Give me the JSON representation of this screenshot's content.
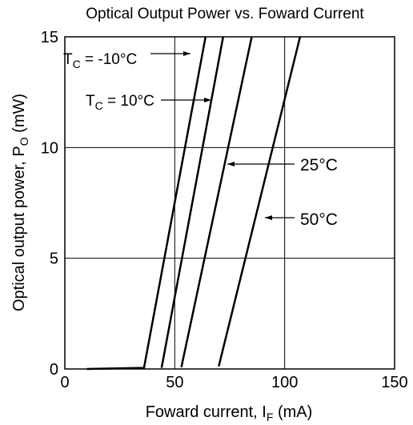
{
  "chart_data": {
    "type": "line",
    "title": "Optical Output Power vs. Foward Current",
    "xlabel": {
      "main": "Foward current,  I",
      "sub": "F",
      "unit": "  (mA)"
    },
    "ylabel": {
      "main": "Optical output power,  P",
      "sub": "O",
      "unit": "  (mW)"
    },
    "xlim": [
      0,
      150
    ],
    "ylim": [
      0,
      15
    ],
    "xticks": [
      "0",
      "50",
      "100",
      "150"
    ],
    "yticks": [
      "0",
      "5",
      "10",
      "15"
    ],
    "grid": true,
    "series": [
      {
        "name": "T_C = -10°C",
        "points": [
          [
            10,
            0
          ],
          [
            36,
            0.05
          ],
          [
            64,
            15
          ]
        ]
      },
      {
        "name": "T_C = 10°C",
        "points": [
          [
            44,
            0.05
          ],
          [
            72,
            15
          ]
        ]
      },
      {
        "name": "25°C",
        "points": [
          [
            53,
            0.08
          ],
          [
            85,
            15
          ]
        ]
      },
      {
        "name": "50°C",
        "points": [
          [
            70,
            0.12
          ],
          [
            107,
            15
          ]
        ]
      }
    ],
    "annotations": [
      {
        "prefix": "T",
        "sub": "C",
        "suffix": " = -10°C"
      },
      {
        "prefix": "T",
        "sub": "C",
        "suffix": " = 10°C"
      },
      {
        "text": "25°C"
      },
      {
        "text": "50°C"
      }
    ],
    "colors": {
      "line": "#000000",
      "grid": "#000000",
      "background": "#ffffff"
    }
  }
}
